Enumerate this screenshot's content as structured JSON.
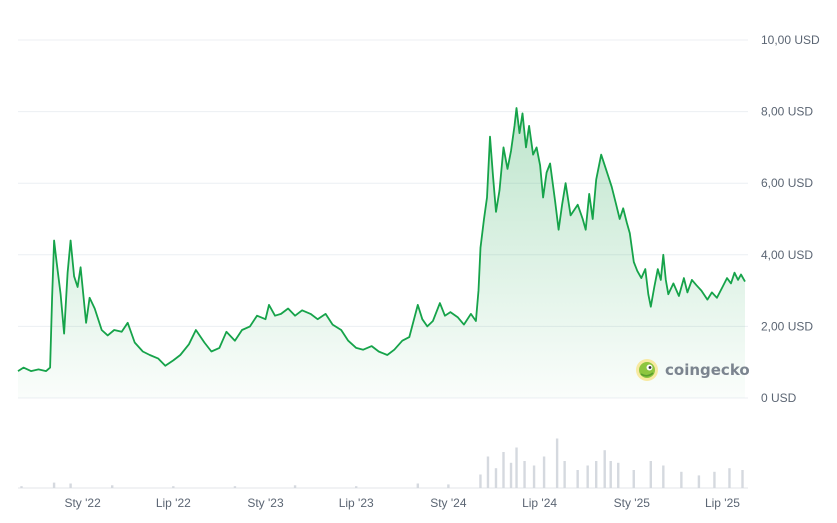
{
  "chart_data": {
    "type": "area",
    "currency_unit": "USD",
    "ylim": [
      0,
      10
    ],
    "grid": true,
    "y_ticks": [
      {
        "value": 0,
        "label": "0 USD"
      },
      {
        "value": 2,
        "label": "2,00 USD"
      },
      {
        "value": 4,
        "label": "4,00 USD"
      },
      {
        "value": 6,
        "label": "6,00 USD"
      },
      {
        "value": 8,
        "label": "8,00 USD"
      },
      {
        "value": 10,
        "label": "10,00 USD"
      }
    ],
    "x_ticks": [
      {
        "date": "2022-01-01",
        "label": "Sty '22"
      },
      {
        "date": "2022-07-01",
        "label": "Lip '22"
      },
      {
        "date": "2023-01-01",
        "label": "Sty '23"
      },
      {
        "date": "2023-07-01",
        "label": "Lip '23"
      },
      {
        "date": "2024-01-01",
        "label": "Sty '24"
      },
      {
        "date": "2024-07-01",
        "label": "Lip '24"
      },
      {
        "date": "2025-01-01",
        "label": "Sty '25"
      },
      {
        "date": "2025-07-01",
        "label": "Lip '25"
      }
    ],
    "xlim": [
      "2021-08-25",
      "2025-08-15"
    ],
    "series": [
      {
        "color": "#16a34a",
        "points": [
          [
            "2021-08-25",
            0.75
          ],
          [
            "2021-09-05",
            0.85
          ],
          [
            "2021-09-20",
            0.75
          ],
          [
            "2021-10-05",
            0.8
          ],
          [
            "2021-10-20",
            0.75
          ],
          [
            "2021-10-28",
            0.85
          ],
          [
            "2021-11-01",
            2.8
          ],
          [
            "2021-11-05",
            4.4
          ],
          [
            "2021-11-10",
            3.8
          ],
          [
            "2021-11-18",
            2.9
          ],
          [
            "2021-11-25",
            1.8
          ],
          [
            "2021-12-02",
            3.5
          ],
          [
            "2021-12-08",
            4.4
          ],
          [
            "2021-12-15",
            3.4
          ],
          [
            "2021-12-22",
            3.1
          ],
          [
            "2021-12-28",
            3.65
          ],
          [
            "2022-01-08",
            2.1
          ],
          [
            "2022-01-15",
            2.8
          ],
          [
            "2022-01-25",
            2.5
          ],
          [
            "2022-02-08",
            1.9
          ],
          [
            "2022-02-20",
            1.75
          ],
          [
            "2022-03-05",
            1.9
          ],
          [
            "2022-03-20",
            1.85
          ],
          [
            "2022-04-01",
            2.1
          ],
          [
            "2022-04-15",
            1.55
          ],
          [
            "2022-05-01",
            1.3
          ],
          [
            "2022-05-15",
            1.2
          ],
          [
            "2022-06-01",
            1.1
          ],
          [
            "2022-06-15",
            0.9
          ],
          [
            "2022-07-01",
            1.05
          ],
          [
            "2022-07-15",
            1.2
          ],
          [
            "2022-08-01",
            1.5
          ],
          [
            "2022-08-15",
            1.9
          ],
          [
            "2022-09-01",
            1.55
          ],
          [
            "2022-09-15",
            1.3
          ],
          [
            "2022-10-01",
            1.4
          ],
          [
            "2022-10-15",
            1.85
          ],
          [
            "2022-11-01",
            1.6
          ],
          [
            "2022-11-15",
            1.9
          ],
          [
            "2022-12-01",
            2.0
          ],
          [
            "2022-12-15",
            2.3
          ],
          [
            "2023-01-01",
            2.2
          ],
          [
            "2023-01-08",
            2.6
          ],
          [
            "2023-01-20",
            2.3
          ],
          [
            "2023-02-01",
            2.35
          ],
          [
            "2023-02-15",
            2.5
          ],
          [
            "2023-03-01",
            2.3
          ],
          [
            "2023-03-15",
            2.45
          ],
          [
            "2023-04-01",
            2.35
          ],
          [
            "2023-04-15",
            2.2
          ],
          [
            "2023-05-01",
            2.35
          ],
          [
            "2023-05-15",
            2.05
          ],
          [
            "2023-06-01",
            1.9
          ],
          [
            "2023-06-15",
            1.6
          ],
          [
            "2023-07-01",
            1.4
          ],
          [
            "2023-07-15",
            1.35
          ],
          [
            "2023-08-01",
            1.45
          ],
          [
            "2023-08-15",
            1.3
          ],
          [
            "2023-09-01",
            1.2
          ],
          [
            "2023-09-15",
            1.35
          ],
          [
            "2023-10-01",
            1.6
          ],
          [
            "2023-10-15",
            1.7
          ],
          [
            "2023-11-01",
            2.6
          ],
          [
            "2023-11-10",
            2.2
          ],
          [
            "2023-11-20",
            2.0
          ],
          [
            "2023-12-01",
            2.15
          ],
          [
            "2023-12-15",
            2.65
          ],
          [
            "2023-12-25",
            2.3
          ],
          [
            "2024-01-05",
            2.4
          ],
          [
            "2024-01-20",
            2.25
          ],
          [
            "2024-02-01",
            2.05
          ],
          [
            "2024-02-15",
            2.35
          ],
          [
            "2024-02-25",
            2.15
          ],
          [
            "2024-03-01",
            3.0
          ],
          [
            "2024-03-05",
            4.2
          ],
          [
            "2024-03-12",
            5.0
          ],
          [
            "2024-03-18",
            5.6
          ],
          [
            "2024-03-24",
            7.3
          ],
          [
            "2024-03-30",
            6.2
          ],
          [
            "2024-04-05",
            5.2
          ],
          [
            "2024-04-12",
            5.8
          ],
          [
            "2024-04-20",
            7.0
          ],
          [
            "2024-04-28",
            6.4
          ],
          [
            "2024-05-05",
            6.9
          ],
          [
            "2024-05-12",
            7.6
          ],
          [
            "2024-05-16",
            8.1
          ],
          [
            "2024-05-22",
            7.4
          ],
          [
            "2024-05-28",
            7.95
          ],
          [
            "2024-06-04",
            7.0
          ],
          [
            "2024-06-10",
            7.6
          ],
          [
            "2024-06-18",
            6.8
          ],
          [
            "2024-06-25",
            7.0
          ],
          [
            "2024-07-02",
            6.5
          ],
          [
            "2024-07-08",
            5.6
          ],
          [
            "2024-07-15",
            6.3
          ],
          [
            "2024-07-22",
            6.55
          ],
          [
            "2024-08-01",
            5.5
          ],
          [
            "2024-08-08",
            4.7
          ],
          [
            "2024-08-15",
            5.4
          ],
          [
            "2024-08-22",
            6.0
          ],
          [
            "2024-09-01",
            5.1
          ],
          [
            "2024-09-15",
            5.4
          ],
          [
            "2024-09-25",
            5.0
          ],
          [
            "2024-10-01",
            4.7
          ],
          [
            "2024-10-08",
            5.7
          ],
          [
            "2024-10-15",
            5.0
          ],
          [
            "2024-10-22",
            6.1
          ],
          [
            "2024-11-01",
            6.8
          ],
          [
            "2024-11-08",
            6.5
          ],
          [
            "2024-11-15",
            6.2
          ],
          [
            "2024-11-22",
            5.9
          ],
          [
            "2024-12-01",
            5.4
          ],
          [
            "2024-12-08",
            5.0
          ],
          [
            "2024-12-15",
            5.3
          ],
          [
            "2024-12-22",
            4.9
          ],
          [
            "2024-12-28",
            4.6
          ],
          [
            "2025-01-05",
            3.8
          ],
          [
            "2025-01-12",
            3.55
          ],
          [
            "2025-01-20",
            3.35
          ],
          [
            "2025-01-28",
            3.6
          ],
          [
            "2025-02-03",
            2.9
          ],
          [
            "2025-02-08",
            2.55
          ],
          [
            "2025-02-15",
            3.1
          ],
          [
            "2025-02-22",
            3.6
          ],
          [
            "2025-02-28",
            3.3
          ],
          [
            "2025-03-05",
            4.0
          ],
          [
            "2025-03-10",
            3.3
          ],
          [
            "2025-03-15",
            2.9
          ],
          [
            "2025-03-25",
            3.2
          ],
          [
            "2025-04-05",
            2.85
          ],
          [
            "2025-04-15",
            3.35
          ],
          [
            "2025-04-22",
            2.95
          ],
          [
            "2025-05-01",
            3.3
          ],
          [
            "2025-05-10",
            3.15
          ],
          [
            "2025-05-20",
            3.0
          ],
          [
            "2025-06-01",
            2.75
          ],
          [
            "2025-06-10",
            2.95
          ],
          [
            "2025-06-20",
            2.8
          ],
          [
            "2025-07-01",
            3.1
          ],
          [
            "2025-07-10",
            3.35
          ],
          [
            "2025-07-18",
            3.2
          ],
          [
            "2025-07-25",
            3.5
          ],
          [
            "2025-08-01",
            3.3
          ],
          [
            "2025-08-07",
            3.45
          ],
          [
            "2025-08-15",
            3.25
          ]
        ]
      }
    ],
    "volume": {
      "color": "#d5d9df",
      "ylim": [
        0,
        1
      ],
      "points": [
        [
          "2021-09-01",
          0.02
        ],
        [
          "2021-11-05",
          0.06
        ],
        [
          "2021-12-08",
          0.05
        ],
        [
          "2022-03-01",
          0.03
        ],
        [
          "2022-07-01",
          0.02
        ],
        [
          "2022-11-01",
          0.02
        ],
        [
          "2023-03-01",
          0.03
        ],
        [
          "2023-07-01",
          0.02
        ],
        [
          "2023-11-01",
          0.05
        ],
        [
          "2024-01-01",
          0.04
        ],
        [
          "2024-03-05",
          0.15
        ],
        [
          "2024-03-20",
          0.35
        ],
        [
          "2024-04-05",
          0.22
        ],
        [
          "2024-04-20",
          0.4
        ],
        [
          "2024-05-05",
          0.28
        ],
        [
          "2024-05-16",
          0.45
        ],
        [
          "2024-06-01",
          0.3
        ],
        [
          "2024-06-20",
          0.25
        ],
        [
          "2024-07-10",
          0.35
        ],
        [
          "2024-08-05",
          0.55
        ],
        [
          "2024-08-20",
          0.3
        ],
        [
          "2024-09-15",
          0.2
        ],
        [
          "2024-10-05",
          0.25
        ],
        [
          "2024-10-22",
          0.3
        ],
        [
          "2024-11-08",
          0.42
        ],
        [
          "2024-11-20",
          0.3
        ],
        [
          "2024-12-05",
          0.28
        ],
        [
          "2025-01-05",
          0.2
        ],
        [
          "2025-02-08",
          0.3
        ],
        [
          "2025-03-05",
          0.25
        ],
        [
          "2025-04-10",
          0.18
        ],
        [
          "2025-05-15",
          0.14
        ],
        [
          "2025-06-15",
          0.18
        ],
        [
          "2025-07-15",
          0.22
        ],
        [
          "2025-08-10",
          0.2
        ]
      ]
    }
  },
  "watermark": {
    "text": "coingecko",
    "logo_icon": "gecko-logo-icon"
  }
}
